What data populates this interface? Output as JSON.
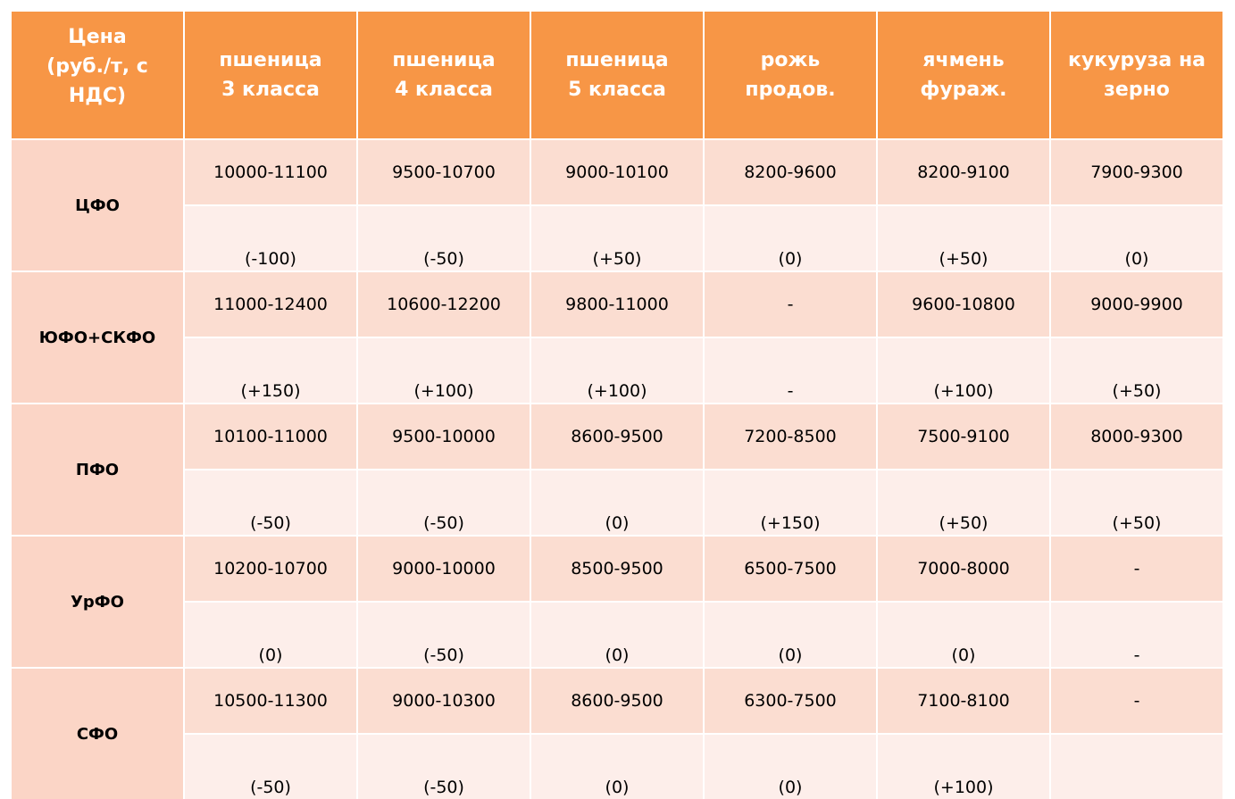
{
  "table": {
    "headers": [
      "Цена\n(руб./т, с\nНДС)",
      "пшеница\n      3 класса",
      "пшеница\n      4 класса",
      "пшеница\n      5 класса",
      "рожь\nпродов.",
      "ячмень\nфураж.",
      "кукуруза на\nзерно"
    ],
    "rows": [
      {
        "region": "ЦФО",
        "prices": [
          "10000-11100",
          "9500-10700",
          "9000-10100",
          "8200-9600",
          "8200-9100",
          "7900-9300"
        ],
        "changes": [
          "(-100)",
          "(-50)",
          "(+50)",
          "(0)",
          "(+50)",
          "(0)"
        ]
      },
      {
        "region": "ЮФО+СКФО",
        "prices": [
          "11000-12400",
          "10600-12200",
          "9800-11000",
          "-",
          "9600-10800",
          "9000-9900"
        ],
        "changes": [
          "(+150)",
          "(+100)",
          "(+100)",
          "-",
          "(+100)",
          "(+50)"
        ]
      },
      {
        "region": "ПФО",
        "prices": [
          "10100-11000",
          "9500-10000",
          "8600-9500",
          "7200-8500",
          "7500-9100",
          "8000-9300"
        ],
        "changes": [
          "(-50)",
          "(-50)",
          "(0)",
          "(+150)",
          "(+50)",
          "(+50)"
        ]
      },
      {
        "region": "УрФО",
        "prices": [
          "10200-10700",
          "9000-10000",
          "8500-9500",
          "6500-7500",
          "7000-8000",
          "-"
        ],
        "changes": [
          "(0)",
          "(-50)",
          "(0)",
          "(0)",
          "(0)",
          "-"
        ]
      },
      {
        "region": "СФО",
        "prices": [
          "10500-11300",
          "9000-10300",
          "8600-9500",
          "6300-7500",
          "7100-8100",
          "-"
        ],
        "changes": [
          "(-50)",
          "(-50)",
          "(0)",
          "(0)",
          "(+100)",
          ""
        ]
      }
    ]
  },
  "colors": {
    "header_bg": "#F79646",
    "header_text": "#FFFFFF",
    "region_bg": "#FBD5C6",
    "price_row_bg": "#FBDDD1",
    "change_row_bg": "#FDEEEA"
  }
}
